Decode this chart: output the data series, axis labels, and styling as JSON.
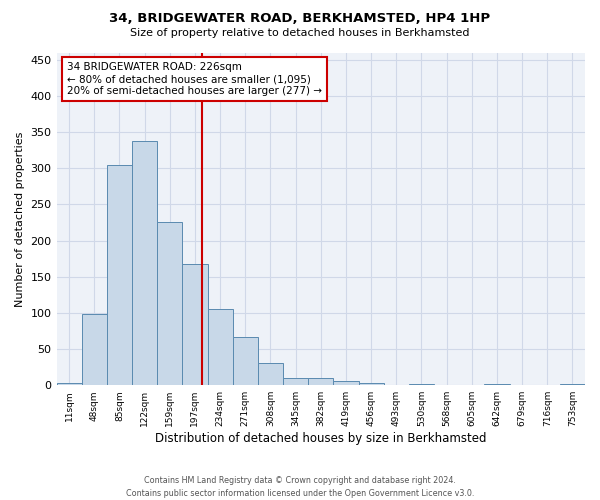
{
  "title": "34, BRIDGEWATER ROAD, BERKHAMSTED, HP4 1HP",
  "subtitle": "Size of property relative to detached houses in Berkhamsted",
  "xlabel": "Distribution of detached houses by size in Berkhamsted",
  "ylabel": "Number of detached properties",
  "footer_line1": "Contains HM Land Registry data © Crown copyright and database right 2024.",
  "footer_line2": "Contains public sector information licensed under the Open Government Licence v3.0.",
  "categories": [
    "11sqm",
    "48sqm",
    "85sqm",
    "122sqm",
    "159sqm",
    "197sqm",
    "234sqm",
    "271sqm",
    "308sqm",
    "345sqm",
    "382sqm",
    "419sqm",
    "456sqm",
    "493sqm",
    "530sqm",
    "568sqm",
    "605sqm",
    "642sqm",
    "679sqm",
    "716sqm",
    "753sqm"
  ],
  "values": [
    3,
    99,
    305,
    337,
    225,
    167,
    106,
    67,
    31,
    10,
    10,
    6,
    3,
    0,
    2,
    0,
    0,
    1,
    0,
    0,
    1
  ],
  "bar_color": "#c8d8e8",
  "bar_edge_color": "#5a8ab0",
  "grid_color": "#d0d8e8",
  "background_color": "#eef2f8",
  "ylim": [
    0,
    460
  ],
  "yticks": [
    0,
    50,
    100,
    150,
    200,
    250,
    300,
    350,
    400,
    450
  ],
  "annotation_line1": "34 BRIDGEWATER ROAD: 226sqm",
  "annotation_line2": "← 80% of detached houses are smaller (1,095)",
  "annotation_line3": "20% of semi-detached houses are larger (277) →",
  "vline_color": "#cc0000",
  "vline_x": 5.28,
  "ann_box_edge_color": "#cc0000"
}
